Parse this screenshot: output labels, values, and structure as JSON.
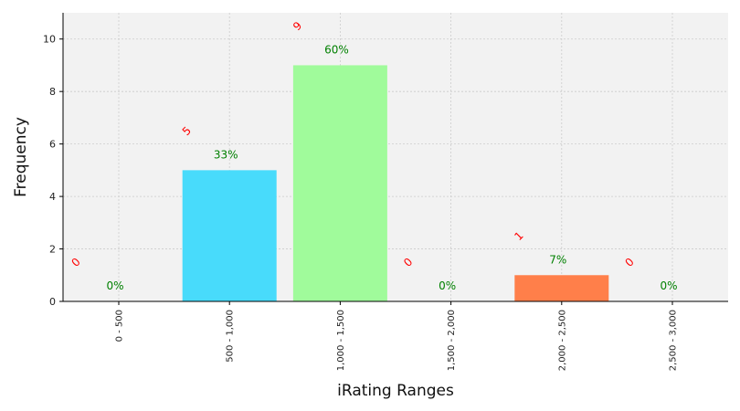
{
  "chart_data": {
    "type": "bar",
    "title": "",
    "xlabel": "iRating Ranges",
    "ylabel": "Frequency",
    "categories": [
      "0 - 500",
      "500 - 1,000",
      "1,000 - 1,500",
      "1,500 - 2,000",
      "2,000 - 2,500",
      "2,500 - 3,000"
    ],
    "values": [
      0,
      5,
      9,
      0,
      1,
      0
    ],
    "count_labels": [
      "0",
      "5",
      "9",
      "0",
      "1",
      "0"
    ],
    "percent_labels": [
      "0%",
      "33%",
      "60%",
      "0%",
      "7%",
      "0%"
    ],
    "bar_colors": [
      "#4b0082",
      "#48dbfb",
      "#a0fb9b",
      "#ffd92f",
      "#ff7f4a",
      "#ff0000"
    ],
    "ylim": [
      0,
      11
    ],
    "yticks": [
      0,
      2,
      4,
      6,
      8,
      10
    ],
    "grid": true,
    "background": "#f2f2f2",
    "count_label_color": "#ff0000",
    "percent_label_color": "#008000"
  }
}
